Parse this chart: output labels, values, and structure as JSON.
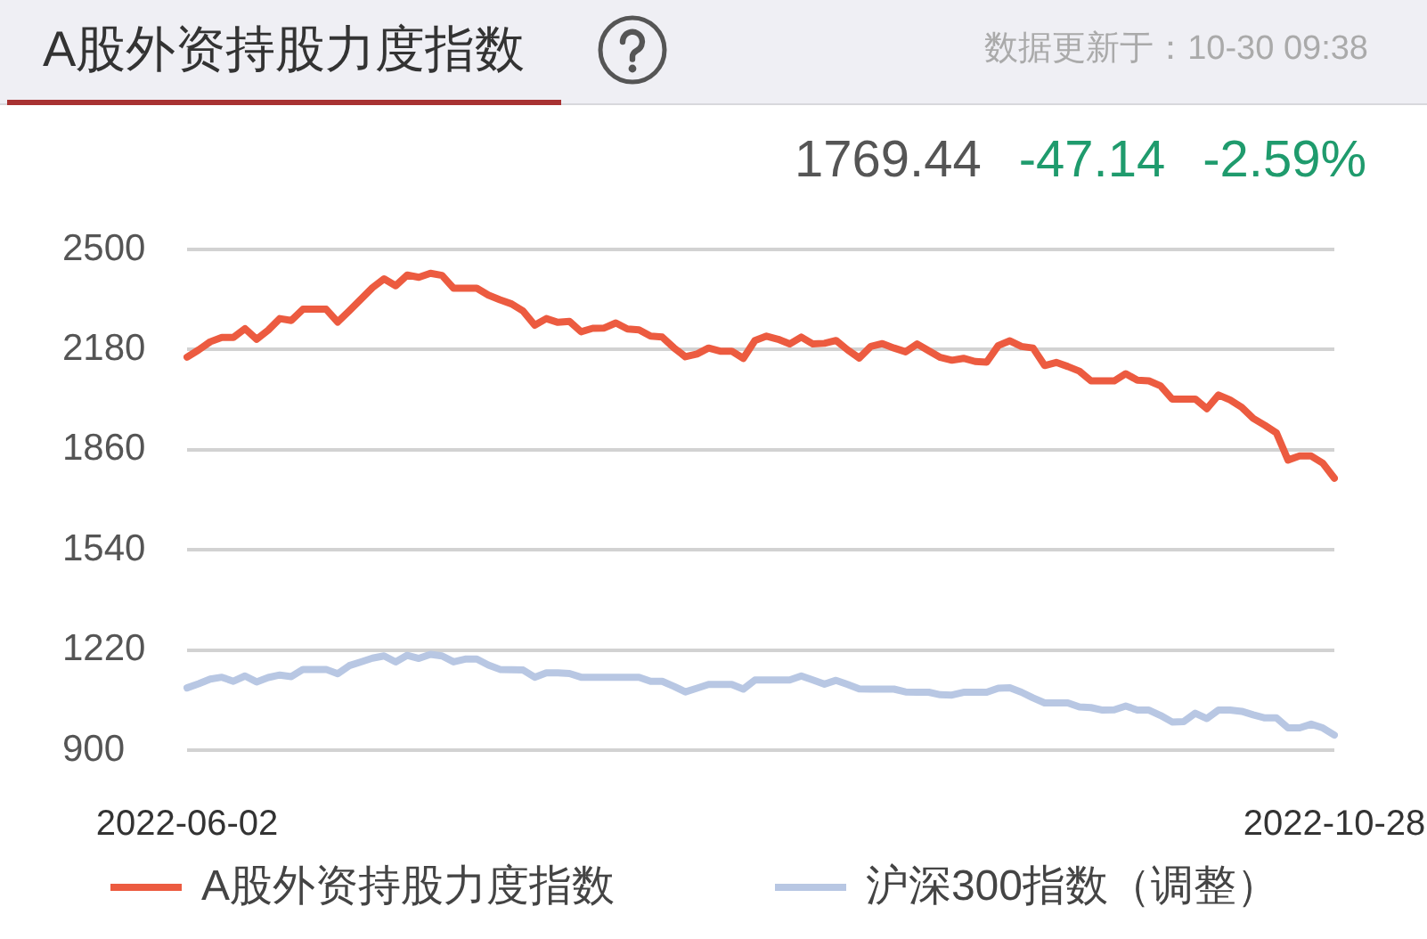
{
  "chart_data": {
    "type": "line",
    "title": "A股外资持股力度指数",
    "subtitle": "数据更新于：10-30 09:38",
    "annotations": [
      "1769.44",
      "-47.14",
      "-2.59%"
    ],
    "categories": [
      "2022-06-02",
      null,
      null,
      null,
      null,
      null,
      null,
      null,
      null,
      null,
      null,
      null,
      null,
      null,
      null,
      null,
      null,
      null,
      null,
      null,
      null,
      null,
      null,
      null,
      null,
      null,
      null,
      null,
      null,
      null,
      null,
      null,
      null,
      null,
      null,
      null,
      null,
      null,
      null,
      null,
      null,
      null,
      null,
      null,
      null,
      null,
      null,
      null,
      null,
      null,
      null,
      null,
      null,
      null,
      null,
      null,
      null,
      null,
      null,
      null,
      null,
      null,
      null,
      null,
      null,
      null,
      null,
      null,
      null,
      null,
      null,
      null,
      null,
      null,
      null,
      null,
      null,
      null,
      null,
      null,
      null,
      null,
      null,
      null,
      null,
      null,
      null,
      null,
      null,
      null,
      null,
      null,
      null,
      null,
      null,
      null,
      null,
      null,
      null,
      "2022-10-28"
    ],
    "series": [
      {
        "name": "A股外资持股力度指数",
        "color": "#ec5b40",
        "values": [
          2156,
          2179,
          2205,
          2219,
          2219,
          2247,
          2213,
          2242,
          2279,
          2273,
          2309,
          2309,
          2309,
          2268,
          2304,
          2341,
          2378,
          2406,
          2384,
          2418,
          2411,
          2424,
          2417,
          2376,
          2376,
          2376,
          2354,
          2339,
          2326,
          2303,
          2258,
          2279,
          2267,
          2270,
          2237,
          2248,
          2249,
          2265,
          2246,
          2243,
          2223,
          2220,
          2186,
          2157,
          2166,
          2185,
          2175,
          2175,
          2152,
          2209,
          2223,
          2213,
          2198,
          2220,
          2198,
          2200,
          2209,
          2179,
          2153,
          2190,
          2199,
          2185,
          2173,
          2198,
          2176,
          2155,
          2146,
          2152,
          2142,
          2140,
          2193,
          2208,
          2190,
          2185,
          2129,
          2139,
          2126,
          2111,
          2080,
          2080,
          2080,
          2103,
          2082,
          2080,
          2064,
          2022,
          2022,
          2022,
          1991,
          2035,
          2019,
          1996,
          1960,
          1938,
          1914,
          1827,
          1840,
          1840,
          1817,
          1769
        ]
      },
      {
        "name": "沪深300指数（调整）",
        "color": "#b8c7e3",
        "values": [
          1099,
          1112,
          1127,
          1133,
          1120,
          1137,
          1118,
          1132,
          1140,
          1135,
          1158,
          1158,
          1158,
          1144,
          1170,
          1182,
          1194,
          1201,
          1182,
          1203,
          1193,
          1206,
          1201,
          1182,
          1191,
          1191,
          1172,
          1158,
          1157,
          1156,
          1133,
          1147,
          1147,
          1145,
          1133,
          1133,
          1133,
          1133,
          1133,
          1133,
          1120,
          1120,
          1104,
          1086,
          1098,
          1110,
          1110,
          1110,
          1095,
          1124,
          1124,
          1124,
          1124,
          1137,
          1124,
          1111,
          1123,
          1110,
          1096,
          1095,
          1095,
          1095,
          1086,
          1085,
          1085,
          1077,
          1076,
          1085,
          1085,
          1085,
          1098,
          1099,
          1085,
          1067,
          1051,
          1051,
          1051,
          1038,
          1036,
          1028,
          1029,
          1041,
          1028,
          1028,
          1011,
          990,
          991,
          1018,
          1001,
          1028,
          1028,
          1024,
          1013,
          1003,
          1003,
          971,
          971,
          983,
          971,
          948
        ]
      }
    ],
    "ylim": [
      900,
      2500
    ],
    "yticks": [
      900,
      1220,
      1540,
      1860,
      2180,
      2500
    ],
    "grid": "y",
    "legend": "bottom"
  }
}
